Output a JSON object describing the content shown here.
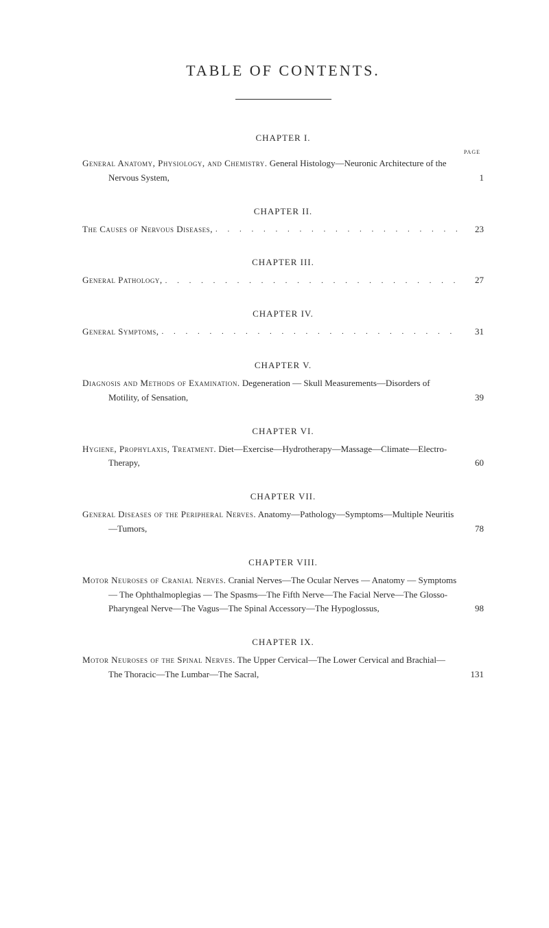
{
  "title": "TABLE OF CONTENTS.",
  "page_label": "PAGE",
  "chapters": [
    {
      "heading": "CHAPTER I.",
      "show_page_label": true,
      "entry_caps": "General Anatomy, Physiology, and Chemistry.",
      "entry_rest": " General Histology—Neuronic Architecture of the Nervous System,",
      "page": "1"
    },
    {
      "heading": "CHAPTER II.",
      "entry_caps": "The Causes of Nervous Diseases,",
      "entry_rest": "",
      "page": "23"
    },
    {
      "heading": "CHAPTER III.",
      "entry_caps": "General Pathology,",
      "entry_rest": "",
      "page": "27"
    },
    {
      "heading": "CHAPTER IV.",
      "entry_caps": "General Symptoms,",
      "entry_rest": "",
      "page": "31"
    },
    {
      "heading": "CHAPTER V.",
      "entry_caps": "Diagnosis and Methods of Examination.",
      "entry_rest": " Degeneration — Skull Measurements—Disorders of Motility, of Sensation,",
      "page": "39"
    },
    {
      "heading": "CHAPTER VI.",
      "entry_caps": "Hygiene, Prophylaxis, Treatment.",
      "entry_rest": " Diet—Exercise—Hydrotherapy—Massage—Climate—Electro-Therapy,",
      "page": "60"
    },
    {
      "heading": "CHAPTER VII.",
      "entry_caps": "General Diseases of the Peripheral Nerves.",
      "entry_rest": " Anatomy—Pathology—Symptoms—Multiple Neuritis—Tumors,",
      "page": "78"
    },
    {
      "heading": "CHAPTER VIII.",
      "entry_caps": "Motor Neuroses of Cranial Nerves.",
      "entry_rest": " Cranial Nerves—The Ocular Nerves — Anatomy — Symptoms — The Ophthalmoplegias — The Spasms—The Fifth Nerve—The Facial Nerve—The Glosso-Pharyngeal Nerve—The Vagus—The Spinal Accessory—The Hypoglossus,",
      "page": "98"
    },
    {
      "heading": "CHAPTER IX.",
      "entry_caps": "Motor Neuroses of the Spinal Nerves.",
      "entry_rest": " The Upper Cervical—The Lower Cervical and Brachial—The Thoracic—The Lumbar—The Sacral,",
      "page": "131"
    }
  ]
}
